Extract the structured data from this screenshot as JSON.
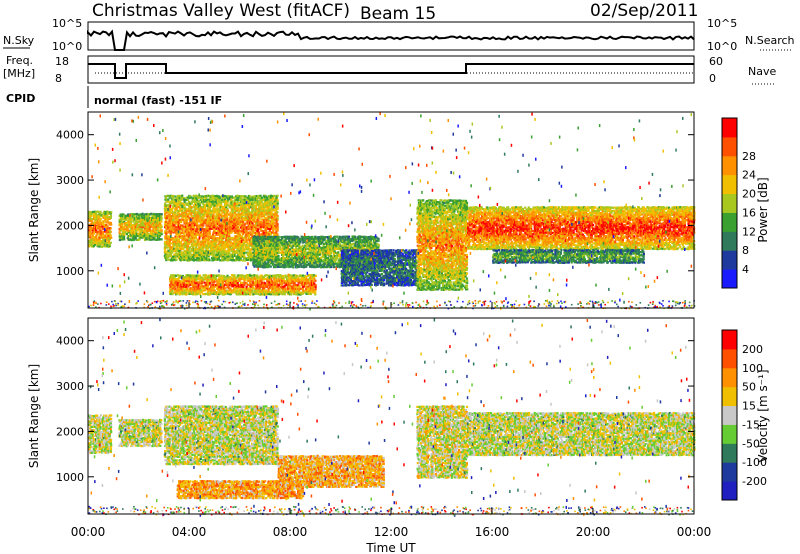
{
  "header": {
    "title": "Christmas Valley West (fitACF)",
    "beam": "Beam 15",
    "date": "02/Sep/2011"
  },
  "aux_panels": {
    "nsky_label": "N.Sky",
    "nsearch_label": "N.Search",
    "nsky_ticks": [
      "10^5",
      "10^0"
    ],
    "nsearch_ticks": [
      "10^5",
      "10^0"
    ],
    "freq_label_top": "Freq.",
    "freq_label_bottom": "[MHz]",
    "freq_ticks": [
      "18",
      "8"
    ],
    "nave_label": "Nave",
    "nave_ticks": [
      "60",
      "0"
    ],
    "cpid_label": "CPID",
    "cpid_text": "normal (fast) -151 IF"
  },
  "chart_data": [
    {
      "type": "heatmap",
      "name": "power",
      "ylabel": "Slant Range [km]",
      "ylim": [
        180,
        4500
      ],
      "yticks": [
        1000,
        2000,
        3000,
        4000
      ],
      "xlim": [
        0,
        24
      ],
      "colorbar": {
        "label": "Power [dB]",
        "ticks": [
          "4",
          "8",
          "12",
          "16",
          "20",
          "24",
          "28"
        ],
        "colors": [
          "#1a1aff",
          "#1f3a9e",
          "#2f7a5a",
          "#3aa030",
          "#a8c820",
          "#f0c000",
          "#ff9000",
          "#ff5000",
          "#ff0000"
        ]
      },
      "regions": [
        {
          "t0": 0.0,
          "t1": 0.9,
          "r0": 1550,
          "r1": 2350,
          "level": 0.85
        },
        {
          "t0": 1.2,
          "t1": 2.9,
          "r0": 1700,
          "r1": 2300,
          "level": 0.7
        },
        {
          "t0": 3.0,
          "t1": 7.5,
          "r0": 1250,
          "r1": 2700,
          "level": 0.8
        },
        {
          "t0": 3.2,
          "t1": 9.0,
          "r0": 500,
          "r1": 950,
          "level": 0.9
        },
        {
          "t0": 6.5,
          "t1": 11.5,
          "r0": 1100,
          "r1": 1800,
          "level": 0.55
        },
        {
          "t0": 10.0,
          "t1": 13.0,
          "r0": 700,
          "r1": 1500,
          "level": 0.3
        },
        {
          "t0": 13.0,
          "t1": 15.0,
          "r0": 600,
          "r1": 2600,
          "level": 0.75
        },
        {
          "t0": 15.0,
          "t1": 24.0,
          "r0": 1500,
          "r1": 2450,
          "level": 0.95
        },
        {
          "t0": 16.0,
          "t1": 22.0,
          "r0": 1200,
          "r1": 1500,
          "level": 0.45
        }
      ]
    },
    {
      "type": "heatmap",
      "name": "velocity",
      "ylabel": "Slant Range [km]",
      "xlabel": "Time UT",
      "ylim": [
        180,
        4500
      ],
      "yticks": [
        1000,
        2000,
        3000,
        4000
      ],
      "xlim": [
        0,
        24
      ],
      "xticks": [
        "00:00",
        "04:00",
        "08:00",
        "12:00",
        "16:00",
        "20:00",
        "00:00"
      ],
      "colorbar": {
        "label": "Velocity [m s⁻¹]",
        "ticks": [
          "200",
          "100",
          "50",
          "15",
          "-15",
          "-50",
          "-100",
          "-200"
        ],
        "colors": [
          "#2020c0",
          "#1f3a9e",
          "#2f7a5a",
          "#66cc33",
          "#c8c8c8",
          "#f0c000",
          "#ff9000",
          "#ff5000",
          "#ff0000"
        ]
      },
      "regions": [
        {
          "t0": 0.0,
          "t1": 0.9,
          "r0": 1550,
          "r1": 2400,
          "level": 0.5
        },
        {
          "t0": 1.2,
          "t1": 2.9,
          "r0": 1700,
          "r1": 2300,
          "level": 0.5
        },
        {
          "t0": 3.0,
          "t1": 7.5,
          "r0": 1300,
          "r1": 2600,
          "level": 0.5
        },
        {
          "t0": 3.5,
          "t1": 8.5,
          "r0": 550,
          "r1": 950,
          "level": 0.68
        },
        {
          "t0": 7.5,
          "t1": 11.7,
          "r0": 800,
          "r1": 1500,
          "level": 0.66
        },
        {
          "t0": 13.0,
          "t1": 15.0,
          "r0": 1000,
          "r1": 2600,
          "level": 0.52
        },
        {
          "t0": 15.0,
          "t1": 24.0,
          "r0": 1500,
          "r1": 2450,
          "level": 0.5
        }
      ]
    }
  ]
}
